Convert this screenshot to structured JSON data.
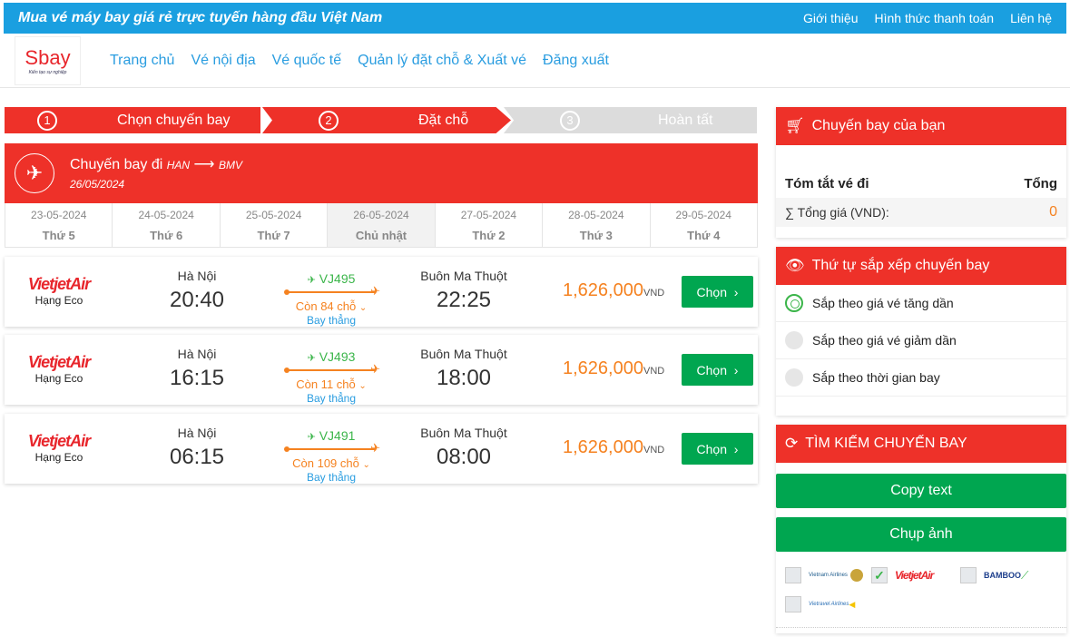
{
  "topbar": {
    "slogan": "Mua vé máy bay giá rẻ trực tuyến hàng đầu Việt Nam",
    "links": [
      "Giới thiệu",
      "Hình thức thanh toán",
      "Liên hệ"
    ]
  },
  "header": {
    "logo": "Sbay",
    "logo_tagline": "Kiến tạo sự nghiệp",
    "nav": [
      "Trang chủ",
      "Vé nội địa",
      "Vé quốc tế",
      "Quản lý đặt chỗ & Xuất vé",
      "Đăng xuất"
    ]
  },
  "steps": [
    {
      "num": "1",
      "label": "Chọn chuyến bay"
    },
    {
      "num": "2",
      "label": "Đặt chỗ"
    },
    {
      "num": "3",
      "label": "Hoàn tất"
    }
  ],
  "flight_header": {
    "title": "Chuyến bay đi",
    "from": "HAN",
    "to": "BMV",
    "date": "26/05/2024"
  },
  "dates": [
    {
      "d": "23-05-2024",
      "w": "Thứ 5"
    },
    {
      "d": "24-05-2024",
      "w": "Thứ 6"
    },
    {
      "d": "25-05-2024",
      "w": "Thứ 7"
    },
    {
      "d": "26-05-2024",
      "w": "Chủ nhật"
    },
    {
      "d": "27-05-2024",
      "w": "Thứ 2"
    },
    {
      "d": "28-05-2024",
      "w": "Thứ 3"
    },
    {
      "d": "29-05-2024",
      "w": "Thứ 4"
    }
  ],
  "flights": [
    {
      "airline": "VietjetAir",
      "class": "Hạng Eco",
      "from": "Hà Nội",
      "dep": "20:40",
      "code": "VJ495",
      "seats": "Còn 84 chỗ",
      "type": "Bay thẳng",
      "to": "Buôn Ma Thuột",
      "arr": "22:25",
      "price": "1,626,000",
      "currency": "VND",
      "button": "Chọn"
    },
    {
      "airline": "VietjetAir",
      "class": "Hạng Eco",
      "from": "Hà Nội",
      "dep": "16:15",
      "code": "VJ493",
      "seats": "Còn 11 chỗ",
      "type": "Bay thẳng",
      "to": "Buôn Ma Thuột",
      "arr": "18:00",
      "price": "1,626,000",
      "currency": "VND",
      "button": "Chọn"
    },
    {
      "airline": "VietjetAir",
      "class": "Hạng Eco",
      "from": "Hà Nội",
      "dep": "06:15",
      "code": "VJ491",
      "seats": "Còn 109 chỗ",
      "type": "Bay thẳng",
      "to": "Buôn Ma Thuột",
      "arr": "08:00",
      "price": "1,626,000",
      "currency": "VND",
      "button": "Chọn"
    }
  ],
  "sidebar": {
    "your_flight": {
      "title": "Chuyến bay của bạn",
      "summary_label": "Tóm tắt vé đi",
      "total_label": "Tổng",
      "sum_label": "∑ Tổng giá (VND):",
      "sum_value": "0"
    },
    "sort": {
      "title": "Thứ tự sắp xếp chuyến bay",
      "options": [
        "Sắp theo giá vé tăng dần",
        "Sắp theo giá vé giảm dần",
        "Sắp theo thời gian bay"
      ],
      "selected": 0
    },
    "search": {
      "title": "TÌM KIẾM CHUYẾN BAY",
      "copy": "Copy text",
      "capture": "Chụp ảnh"
    },
    "airlines": [
      {
        "name": "Vietnam Airlines",
        "checked": false
      },
      {
        "name": "VietjetAir",
        "checked": true
      },
      {
        "name": "BAMBOO",
        "checked": false
      },
      {
        "name": "Vietravel Airlines",
        "checked": false
      }
    ]
  },
  "colors": {
    "red": "#ee3129",
    "blue": "#1a9fe0",
    "green": "#00a650",
    "orange": "#f58220"
  }
}
